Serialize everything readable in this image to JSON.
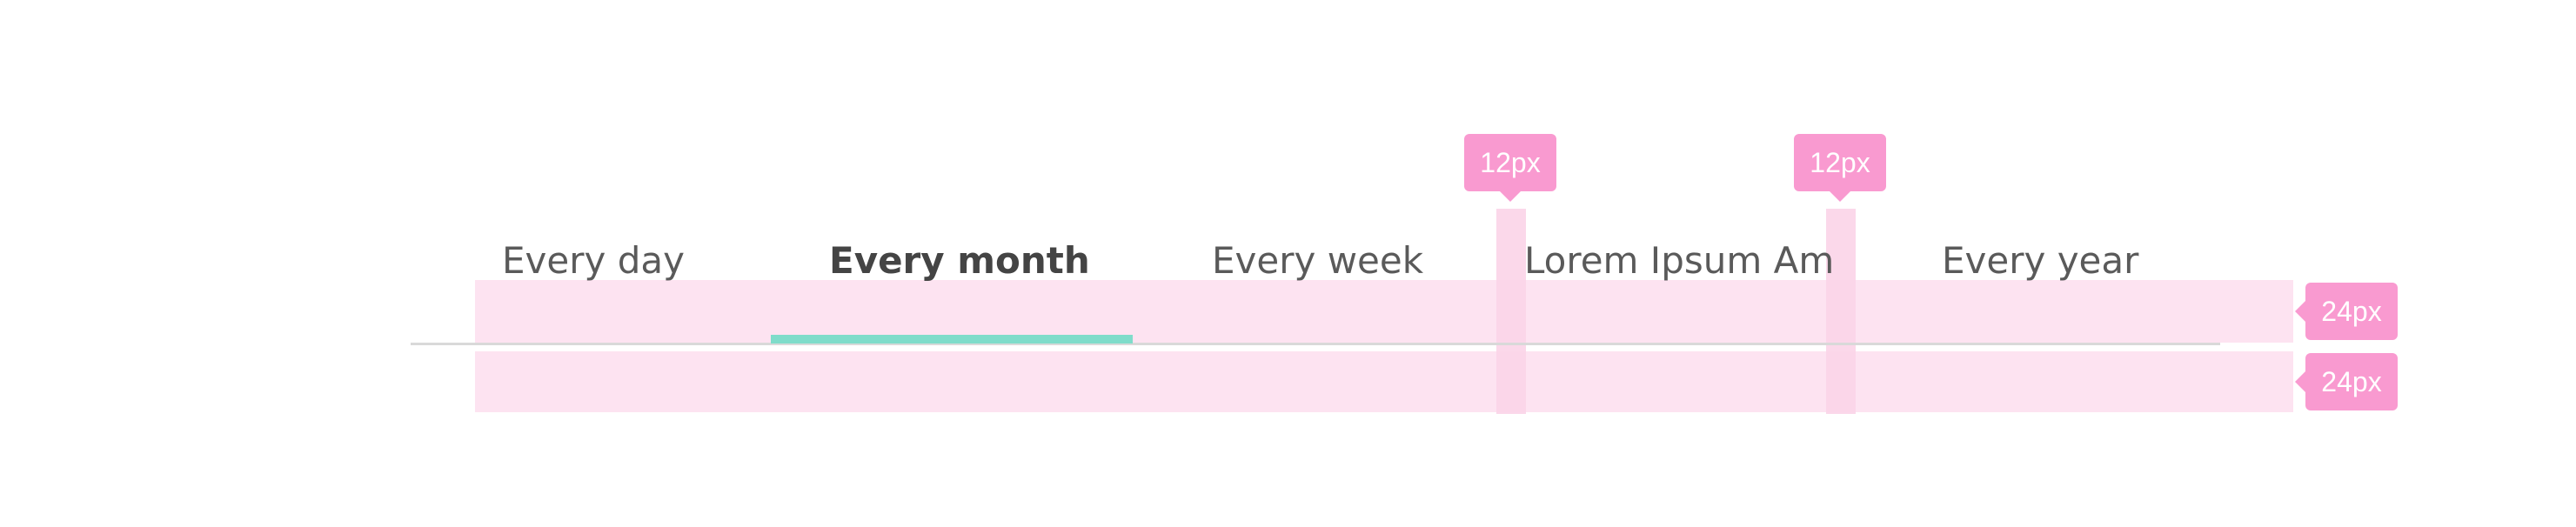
{
  "tabs": [
    {
      "label": "Every day",
      "active": false
    },
    {
      "label": "Every month",
      "active": true
    },
    {
      "label": "Every week",
      "active": false
    },
    {
      "label": "Lorem Ipsum Am",
      "active": false
    },
    {
      "label": "Every year",
      "active": false
    }
  ],
  "spec": {
    "tab_gap_label_1": "12px",
    "tab_gap_label_2": "12px",
    "top_padding_label": "24px",
    "bottom_padding_label": "24px"
  },
  "colors": {
    "active_indicator": "#7fdcca",
    "spec_badge": "#f99ad0",
    "spec_overlay": "#fde3f1",
    "divider": "#d9d9d9",
    "tab_text": "#5a5a5a"
  }
}
